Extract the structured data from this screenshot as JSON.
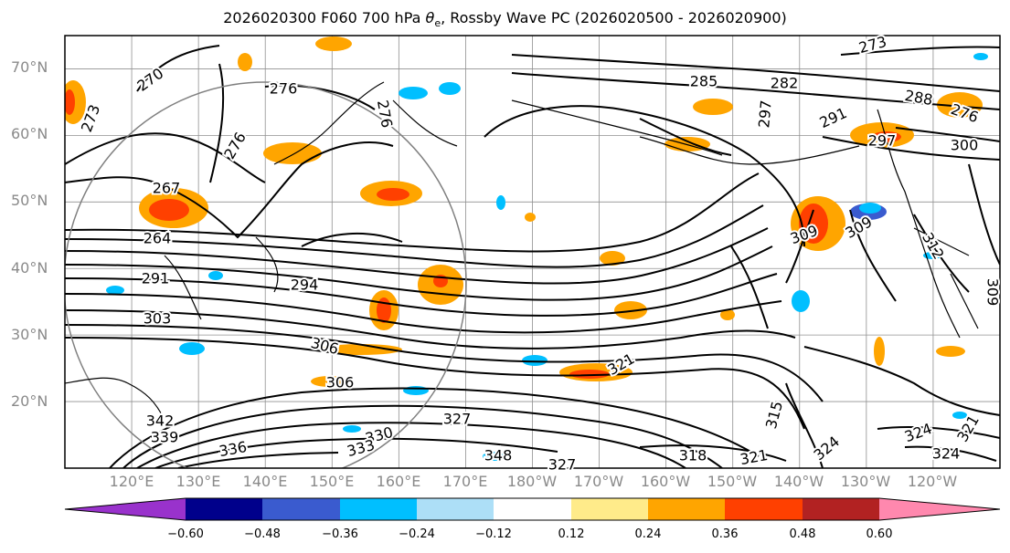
{
  "title": {
    "prefix": "2026020300 F060 700 hPa ",
    "theta": "θ",
    "sub": "e",
    "suffix": ", Rossby Wave PC (2026020500 - 2026020900)"
  },
  "map": {
    "projection": "cylindrical",
    "lon_range": [
      110,
      250
    ],
    "lat_range": [
      10,
      75
    ],
    "grid": true,
    "lat_ticks": [
      "70°N",
      "60°N",
      "50°N",
      "40°N",
      "30°N",
      "20°N"
    ],
    "lon_ticks": [
      "120°E",
      "130°E",
      "140°E",
      "150°E",
      "160°E",
      "170°E",
      "180°W",
      "170°W",
      "160°W",
      "150°W",
      "140°W",
      "130°W",
      "120°W"
    ],
    "contour_color": "#000000",
    "coast_color": "#000000",
    "contour_labels": [
      "270",
      "273",
      "276",
      "276",
      "276",
      "267",
      "264",
      "291",
      "294",
      "303",
      "306",
      "285",
      "282",
      "288",
      "276",
      "297",
      "291",
      "297",
      "300",
      "273",
      "309",
      "309",
      "312",
      "309",
      "306",
      "315",
      "318",
      "321",
      "324",
      "327",
      "321",
      "324",
      "330",
      "333",
      "336",
      "339",
      "342",
      "348",
      "327",
      "321",
      "324"
    ],
    "circle_color": "#808080"
  },
  "colorbar": {
    "orientation": "horizontal",
    "extend": "both",
    "colors": [
      "#9932CC",
      "#00008B",
      "#3A5BCF",
      "#00BFFF",
      "#ADDFF7",
      "#FFFFFF",
      "#FFEB8A",
      "#FFA500",
      "#FF4000",
      "#B22222",
      "#FF88AE"
    ],
    "tick_labels": [
      "−0.60",
      "−0.48",
      "−0.36",
      "−0.24",
      "−0.12",
      "0.12",
      "0.24",
      "0.36",
      "0.48",
      "0.60"
    ]
  }
}
